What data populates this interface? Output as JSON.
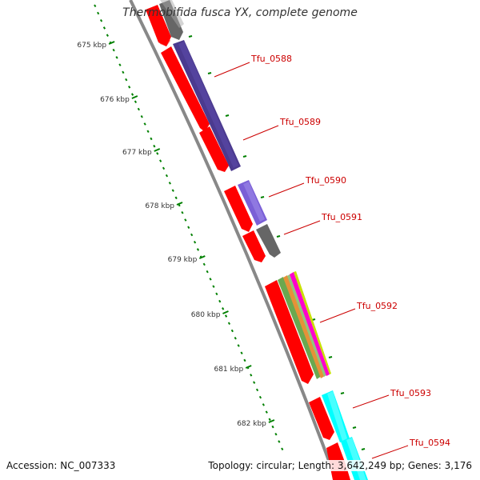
{
  "title": "Thermobifida fusca YX, complete genome",
  "footer": {
    "accession": "Accession: NC_007333",
    "summary": "Topology: circular; Length: 3,642,249 bp; Genes: 3,176"
  },
  "colors": {
    "backbone": "#808080",
    "forward_strand": "#ff0000",
    "ticks": "#008000",
    "label": "#cc0000",
    "tick_label": "#333333"
  },
  "ruler": {
    "unit": "kbp",
    "ticks": [
      {
        "label": "675 kbp"
      },
      {
        "label": "676 kbp"
      },
      {
        "label": "677 kbp"
      },
      {
        "label": "678 kbp"
      },
      {
        "label": "679 kbp"
      },
      {
        "label": "680 kbp"
      },
      {
        "label": "681 kbp"
      },
      {
        "label": "682 kbp"
      }
    ]
  },
  "genes": [
    {
      "label": "Tfu_0588"
    },
    {
      "label": "Tfu_0589"
    },
    {
      "label": "Tfu_0590"
    },
    {
      "label": "Tfu_0591"
    },
    {
      "label": "Tfu_0592"
    },
    {
      "label": "Tfu_0593"
    },
    {
      "label": "Tfu_0594"
    }
  ]
}
